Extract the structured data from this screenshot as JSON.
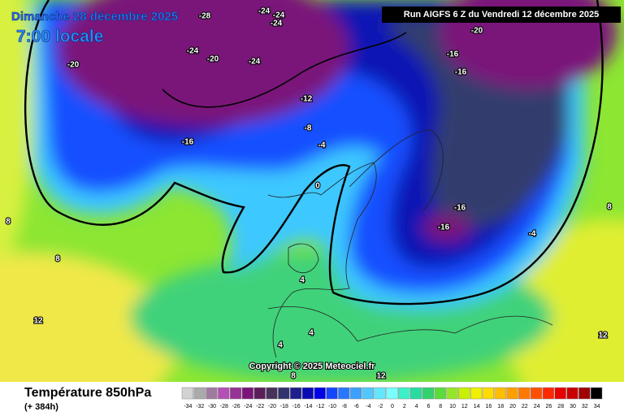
{
  "header": {
    "date": "Dimanche 28 décembre 2025",
    "time": "7:00 locale",
    "run": "Run AIGFS 6 Z du Vendredi 12 décembre 2025"
  },
  "copyright": "Copyright © 2025 Meteociel.fr",
  "footer": {
    "title": "Température 850hPa",
    "lead": "(+ 384h)"
  },
  "contour_labels": [
    "-28",
    "-24",
    "-24",
    "-24",
    "-20",
    "-24",
    "-20",
    "-24",
    "-20",
    "-16",
    "-16",
    "-12",
    "-8",
    "-16",
    "-4",
    "0",
    "-16",
    "-16",
    "-4",
    "8",
    "8",
    "4",
    "12",
    "4",
    "4",
    "8",
    "12",
    "12",
    "8"
  ],
  "legend": {
    "steps": [
      {
        "value": -34,
        "color": "#d2d2d2"
      },
      {
        "value": -32,
        "color": "#aaaaaa"
      },
      {
        "value": -30,
        "color": "#a07aa0"
      },
      {
        "value": -28,
        "color": "#b450b4"
      },
      {
        "value": -26,
        "color": "#963296"
      },
      {
        "value": -24,
        "color": "#7a147a"
      },
      {
        "value": -22,
        "color": "#5a1e5a"
      },
      {
        "value": -20,
        "color": "#46325a"
      },
      {
        "value": -18,
        "color": "#32326e"
      },
      {
        "value": -16,
        "color": "#1e1e8c"
      },
      {
        "value": -14,
        "color": "#0a0ab4"
      },
      {
        "value": -12,
        "color": "#0000e6"
      },
      {
        "value": -10,
        "color": "#1446ff"
      },
      {
        "value": -8,
        "color": "#2878ff"
      },
      {
        "value": -6,
        "color": "#3ca0ff"
      },
      {
        "value": -4,
        "color": "#50c8ff"
      },
      {
        "value": -2,
        "color": "#64e6ff"
      },
      {
        "value": 0,
        "color": "#78ffff"
      },
      {
        "value": 2,
        "color": "#3cf0c8"
      },
      {
        "value": 4,
        "color": "#28dca0"
      },
      {
        "value": 6,
        "color": "#32d26e"
      },
      {
        "value": 8,
        "color": "#5adc3c"
      },
      {
        "value": 10,
        "color": "#96e628"
      },
      {
        "value": 12,
        "color": "#c8f000"
      },
      {
        "value": 14,
        "color": "#f0f000"
      },
      {
        "value": 16,
        "color": "#ffdc00"
      },
      {
        "value": 18,
        "color": "#ffbe00"
      },
      {
        "value": 20,
        "color": "#ffa000"
      },
      {
        "value": 22,
        "color": "#ff7800"
      },
      {
        "value": 24,
        "color": "#ff5000"
      },
      {
        "value": 26,
        "color": "#ff2800"
      },
      {
        "value": 28,
        "color": "#e60000"
      },
      {
        "value": 30,
        "color": "#c80000"
      },
      {
        "value": 32,
        "color": "#a00000"
      },
      {
        "value": 34,
        "color": "#000000"
      }
    ]
  }
}
